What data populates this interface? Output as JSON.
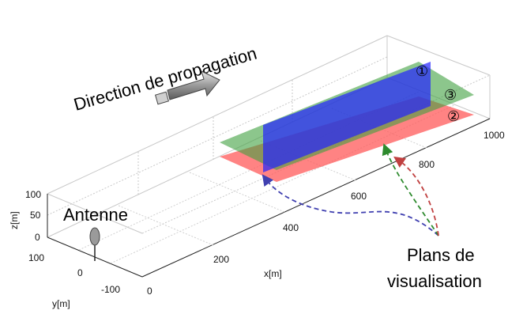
{
  "title": "Direction de propagation",
  "antenna_label": "Antenne",
  "planes_label": [
    "Plans de",
    "visualisation"
  ],
  "axes": {
    "x_label": "x[m]",
    "y_label": "y[m]",
    "z_label": "z[m]",
    "x_ticks": [
      "0",
      "200",
      "400",
      "600",
      "800",
      "1000"
    ],
    "y_ticks": [
      "100",
      "0",
      "-100"
    ],
    "z_ticks": [
      "100",
      "50",
      "0"
    ]
  },
  "planes": [
    {
      "marker": "①",
      "color": "#2d2dff"
    },
    {
      "marker": "②",
      "color": "#ff6b6b"
    },
    {
      "marker": "③",
      "color": "#4caf50"
    }
  ]
}
